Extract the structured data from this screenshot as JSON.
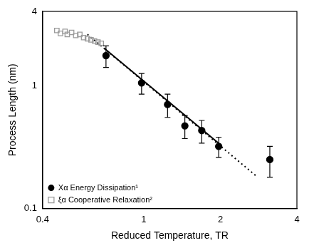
{
  "chart_data": {
    "type": "scatter",
    "xlabel": "Reduced Temperature, TR",
    "ylabel": "Process Length (nm)",
    "log": true,
    "grid": false,
    "legend": "lower left",
    "xlim": [
      0.4,
      4
    ],
    "xticks": [
      0.4,
      1,
      2,
      4
    ],
    "ylim": [
      0.1,
      4
    ],
    "yticks": [
      0.1,
      1,
      4
    ],
    "series": [
      {
        "type": "line",
        "line_style": "dotted",
        "color": "#000000",
        "x": [
          0.6,
          2.8
        ],
        "values": [
          2.6,
          0.18
        ]
      },
      {
        "type": "line",
        "line_style": "solid",
        "color": "#000000",
        "x": [
          0.7,
          2.0
        ],
        "values": [
          2.0,
          0.33
        ]
      },
      {
        "name": "ξα Cooperative Relaxation²",
        "type": "scatter",
        "marker": "open_square",
        "color": "#9a9a9a",
        "x": [
          0.455,
          0.47,
          0.49,
          0.5,
          0.52,
          0.54,
          0.56,
          0.58,
          0.6,
          0.62,
          0.64,
          0.66,
          0.68
        ],
        "values": [
          2.8,
          2.65,
          2.75,
          2.6,
          2.7,
          2.55,
          2.6,
          2.45,
          2.4,
          2.35,
          2.3,
          2.25,
          2.2
        ]
      },
      {
        "name": "Xα Energy Dissipation¹",
        "type": "scatter",
        "marker": "circle",
        "color": "#000000",
        "x": [
          0.71,
          0.98,
          1.24,
          1.45,
          1.69,
          1.97,
          3.13
        ],
        "values": [
          1.75,
          1.05,
          0.7,
          0.47,
          0.43,
          0.32,
          0.25
        ],
        "errors": [
          0.35,
          0.2,
          0.15,
          0.1,
          0.09,
          0.06,
          0.07
        ]
      }
    ]
  }
}
